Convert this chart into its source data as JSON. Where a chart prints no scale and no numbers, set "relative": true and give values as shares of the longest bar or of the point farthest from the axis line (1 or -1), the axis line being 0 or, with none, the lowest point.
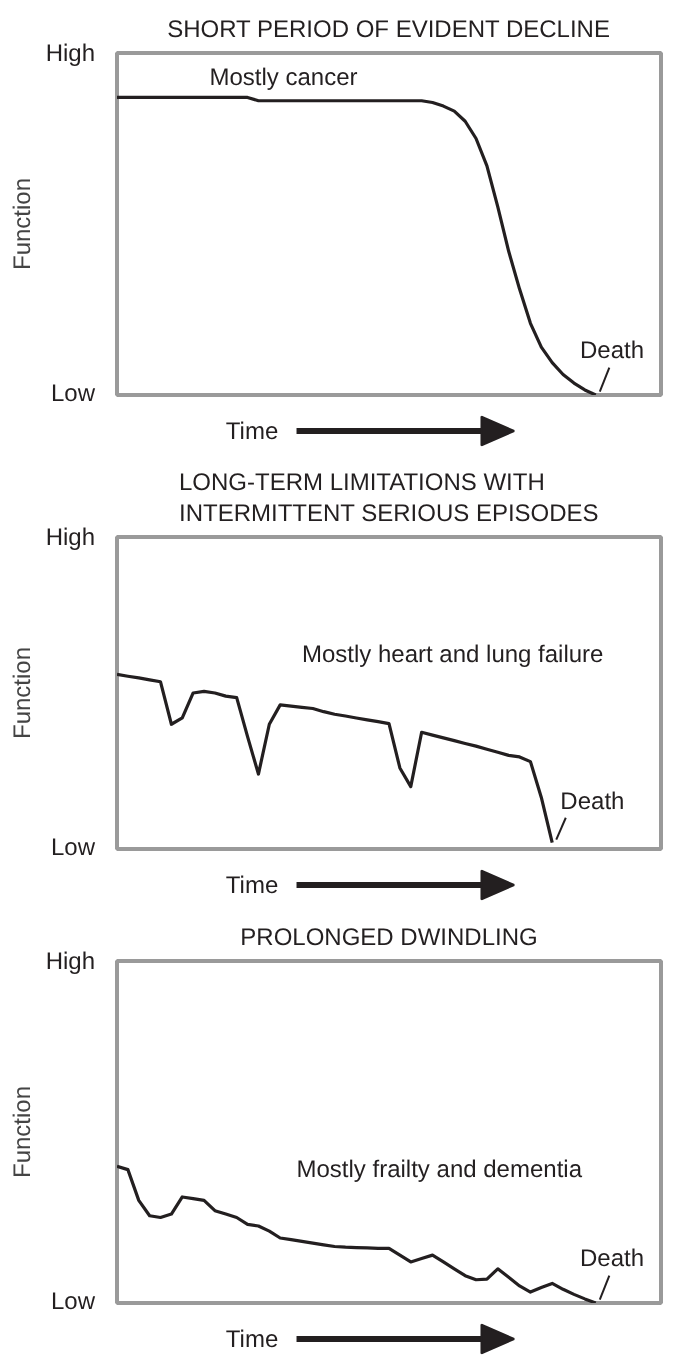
{
  "chart_data": [
    {
      "type": "line",
      "relative": true,
      "title": "SHORT PERIOD OF EVIDENT DECLINE",
      "xlabel": "Time",
      "ylabel": "Function",
      "marker": "none",
      "line_style": "solid",
      "categories": [
        null,
        null,
        null,
        null,
        null,
        null,
        null,
        null,
        null,
        null,
        null,
        null,
        null,
        null,
        null,
        null,
        null,
        null,
        null,
        null,
        null,
        null,
        null,
        null,
        null,
        null,
        null,
        null,
        null,
        null,
        null,
        null,
        null,
        null,
        null,
        null,
        null,
        null,
        null,
        null,
        null,
        null,
        null,
        null,
        null,
        null,
        null,
        null,
        null,
        null,
        null
      ],
      "series": [
        {
          "color": "#231f20",
          "values": [
            1,
            1,
            1,
            1,
            1,
            1,
            1,
            1,
            1,
            1,
            1,
            1,
            1,
            0.989,
            0.989,
            0.989,
            0.989,
            0.989,
            0.989,
            0.989,
            0.989,
            0.989,
            0.989,
            0.989,
            0.989,
            0.989,
            0.989,
            0.989,
            0.989,
            0.983,
            0.971,
            0.954,
            0.92,
            0.862,
            0.77,
            0.632,
            0.483,
            0.356,
            0.241,
            0.161,
            0.109,
            0.069,
            0.04,
            0.017,
            0,
            null,
            null,
            null,
            null,
            null,
            null
          ]
        }
      ],
      "annotations": [
        "High",
        "Low",
        "Mostly cancer",
        "Death"
      ]
    },
    {
      "type": "line",
      "relative": true,
      "title": "LONG-TERM LIMITATIONS WITH\nINTERMITTENT SERIOUS EPISODES",
      "xlabel": "Time",
      "ylabel": "Function",
      "marker": "none",
      "line_style": "solid",
      "categories": [
        null,
        null,
        null,
        null,
        null,
        null,
        null,
        null,
        null,
        null,
        null,
        null,
        null,
        null,
        null,
        null,
        null,
        null,
        null,
        null,
        null,
        null,
        null,
        null,
        null,
        null,
        null,
        null,
        null,
        null,
        null,
        null,
        null,
        null,
        null,
        null,
        null,
        null,
        null,
        null,
        null,
        null,
        null,
        null,
        null,
        null,
        null,
        null,
        null,
        null,
        null
      ],
      "series": [
        {
          "color": "#231f20",
          "values": [
            1,
            0.989,
            0.979,
            0.968,
            0.957,
            0.714,
            0.75,
            0.893,
            0.902,
            0.893,
            0.875,
            0.866,
            0.643,
            0.429,
            0.714,
            0.825,
            0.818,
            0.811,
            0.804,
            0.786,
            0.771,
            0.761,
            0.75,
            0.739,
            0.729,
            0.718,
            0.464,
            0.357,
            0.668,
            0.652,
            0.636,
            0.62,
            0.604,
            0.589,
            0.571,
            0.554,
            0.536,
            0.527,
            0.5,
            0.295,
            0.036,
            null,
            null,
            null,
            null,
            null,
            null,
            null,
            null,
            null,
            null
          ]
        }
      ],
      "annotations": [
        "High",
        "Low",
        "Mostly heart and lung failure",
        "Death"
      ]
    },
    {
      "type": "line",
      "relative": true,
      "title": "PROLONGED DWINDLING",
      "xlabel": "Time",
      "ylabel": "Function",
      "marker": "none",
      "line_style": "solid",
      "categories": [
        null,
        null,
        null,
        null,
        null,
        null,
        null,
        null,
        null,
        null,
        null,
        null,
        null,
        null,
        null,
        null,
        null,
        null,
        null,
        null,
        null,
        null,
        null,
        null,
        null,
        null,
        null,
        null,
        null,
        null,
        null,
        null,
        null,
        null,
        null,
        null,
        null,
        null,
        null,
        null,
        null,
        null,
        null,
        null,
        null,
        null,
        null,
        null,
        null,
        null,
        null
      ],
      "series": [
        {
          "color": "#231f20",
          "values": [
            1,
            0.975,
            0.75,
            0.638,
            0.625,
            0.65,
            0.775,
            0.763,
            0.75,
            0.675,
            0.65,
            0.625,
            0.575,
            0.563,
            0.525,
            0.475,
            0.463,
            0.45,
            0.438,
            0.425,
            0.413,
            0.408,
            0.405,
            0.403,
            0.4,
            0.4,
            0.35,
            0.3,
            0.325,
            0.35,
            0.3,
            0.25,
            0.2,
            0.17,
            0.175,
            0.25,
            0.188,
            0.125,
            0.08,
            0.113,
            0.143,
            0.1,
            0.063,
            0.03,
            0,
            null,
            null,
            null,
            null,
            null,
            null
          ]
        }
      ],
      "annotations": [
        "High",
        "Low",
        "Mostly frailty and dementia",
        "Death"
      ]
    }
  ]
}
